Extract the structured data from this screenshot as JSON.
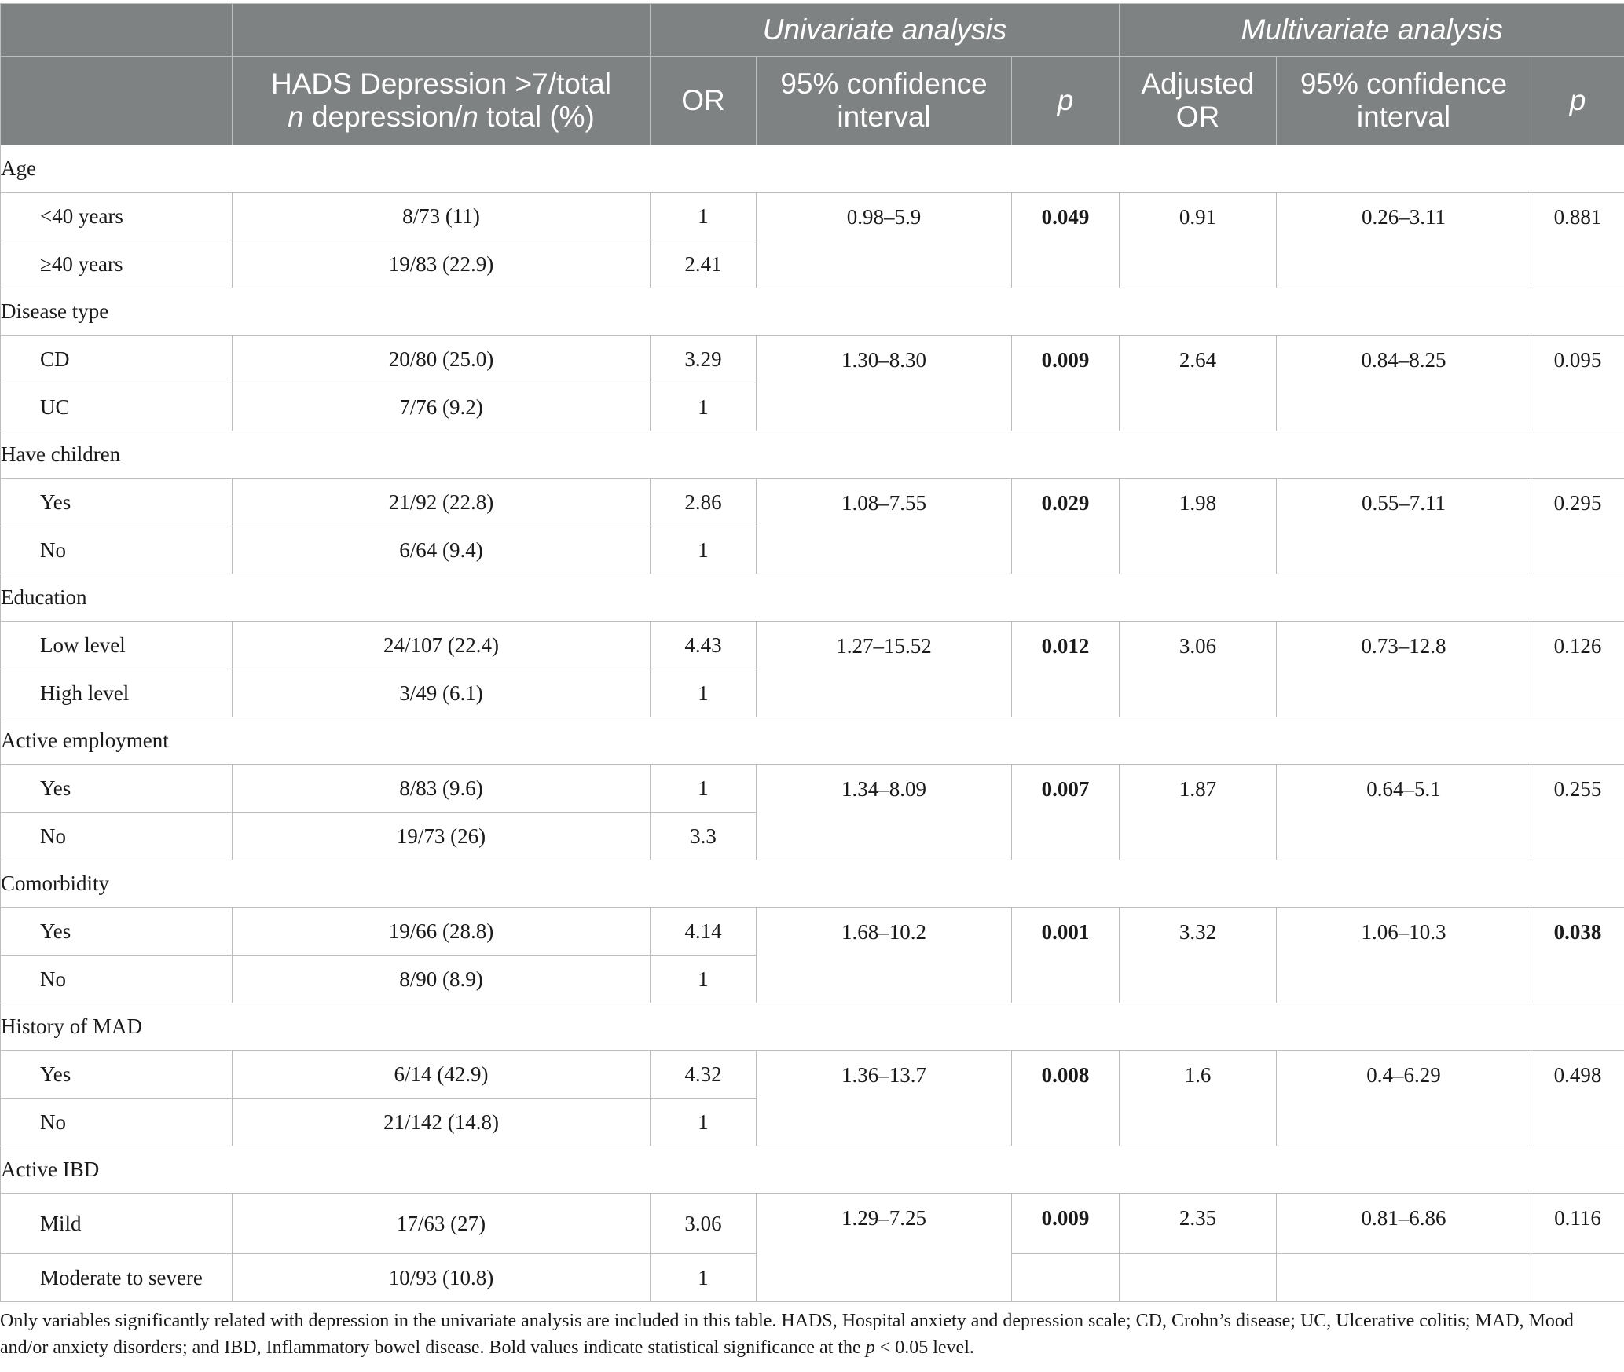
{
  "header": {
    "group_univariate": "Univariate analysis",
    "group_multivariate": "Multivariate analysis",
    "col_hads_line1": "HADS Depression >7/total",
    "col_hads_n1": "n",
    "col_hads_mid": " depression/",
    "col_hads_n2": "n",
    "col_hads_end": " total (%)",
    "col_or": "OR",
    "col_ci_uni": "95% confidence interval",
    "col_p_uni": "p",
    "col_adj_or": "Adjusted OR",
    "col_ci_multi": "95% confidence interval",
    "col_p_multi": "p"
  },
  "groups": [
    {
      "category": "Age",
      "ci": "0.98–5.9",
      "p": "0.049",
      "adj_or": "0.91",
      "adj_ci": "0.26–3.11",
      "adj_p": "0.881",
      "rows": [
        {
          "label": "<40 years",
          "hads": "8/73 (11)",
          "or": "1"
        },
        {
          "label": "≥40 years",
          "hads": "19/83 (22.9)",
          "or": "2.41"
        }
      ]
    },
    {
      "category": "Disease type",
      "ci": "1.30–8.30",
      "p": "0.009",
      "adj_or": "2.64",
      "adj_ci": "0.84–8.25",
      "adj_p": "0.095",
      "rows": [
        {
          "label": "CD",
          "hads": "20/80 (25.0)",
          "or": "3.29"
        },
        {
          "label": "UC",
          "hads": "7/76 (9.2)",
          "or": "1"
        }
      ]
    },
    {
      "category": "Have children",
      "ci": "1.08–7.55",
      "p": "0.029",
      "adj_or": "1.98",
      "adj_ci": "0.55–7.11",
      "adj_p": "0.295",
      "rows": [
        {
          "label": "Yes",
          "hads": "21/92 (22.8)",
          "or": "2.86"
        },
        {
          "label": "No",
          "hads": "6/64 (9.4)",
          "or": "1"
        }
      ]
    },
    {
      "category": "Education",
      "ci": "1.27–15.52",
      "p": "0.012",
      "adj_or": "3.06",
      "adj_ci": "0.73–12.8",
      "adj_p": "0.126",
      "rows": [
        {
          "label": "Low level",
          "hads": "24/107 (22.4)",
          "or": "4.43"
        },
        {
          "label": "High level",
          "hads": "3/49 (6.1)",
          "or": "1"
        }
      ]
    },
    {
      "category": "Active employment",
      "ci": "1.34–8.09",
      "p": "0.007",
      "adj_or": "1.87",
      "adj_ci": "0.64–5.1",
      "adj_p": "0.255",
      "rows": [
        {
          "label": "Yes",
          "hads": "8/83 (9.6)",
          "or": "1"
        },
        {
          "label": "No",
          "hads": "19/73 (26)",
          "or": "3.3"
        }
      ]
    },
    {
      "category": "Comorbidity",
      "ci": "1.68–10.2",
      "p": "0.001",
      "adj_or": "3.32",
      "adj_ci": "1.06–10.3",
      "adj_p": "0.038",
      "rows": [
        {
          "label": "Yes",
          "hads": "19/66 (28.8)",
          "or": "4.14"
        },
        {
          "label": "No",
          "hads": "8/90 (8.9)",
          "or": "1"
        }
      ]
    },
    {
      "category": "History of MAD",
      "ci": "1.36–13.7",
      "p": "0.008",
      "adj_or": "1.6",
      "adj_ci": "0.4–6.29",
      "adj_p": "0.498",
      "rows": [
        {
          "label": "Yes",
          "hads": "6/14 (42.9)",
          "or": "4.32"
        },
        {
          "label": "No",
          "hads": "21/142 (14.8)",
          "or": "1"
        }
      ]
    },
    {
      "category": "Active IBD",
      "ci": "1.29–7.25",
      "p": "0.009",
      "adj_or": "2.35",
      "adj_ci": "0.81–6.86",
      "adj_p": "0.116",
      "rows": [
        {
          "label": "Mild",
          "hads": "17/63 (27)",
          "or": "3.06"
        },
        {
          "label": "Moderate to severe",
          "hads": "10/93 (10.8)",
          "or": "1"
        }
      ]
    }
  ],
  "footnote": {
    "text_before_p": "Only variables significantly related with depression in the univariate analysis are included in this table. HADS, Hospital anxiety and depression scale; CD, Crohn’s disease; UC, Ulcerative colitis; MAD, Mood and/or anxiety disorders; and IBD, Inflammatory bowel disease. Bold values indicate statistical significance at the ",
    "p_symbol": "p",
    "text_after_p": " < 0.05 level."
  }
}
